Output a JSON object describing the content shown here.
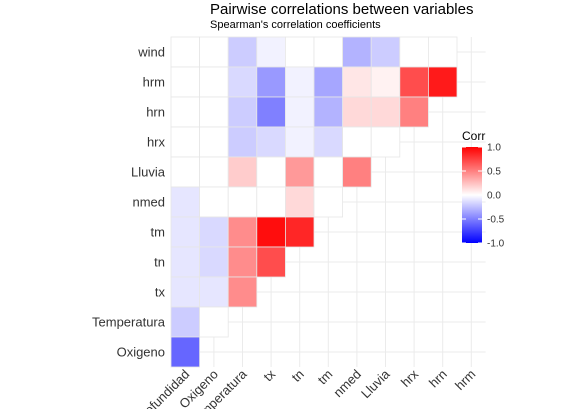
{
  "chart_data": {
    "type": "heatmap",
    "title": "Pairwise correlations between variables",
    "subtitle": "Spearman's correlation coefficients",
    "x_labels": [
      "Profundidad",
      "Oxigeno",
      "Temperatura",
      "tx",
      "tn",
      "tm",
      "nmed",
      "Lluvia",
      "hrx",
      "hrn",
      "hrm"
    ],
    "y_labels": [
      "wind",
      "hrm",
      "hrn",
      "hrx",
      "Lluvia",
      "nmed",
      "tm",
      "tn",
      "tx",
      "Temperatura",
      "Oxigeno"
    ],
    "cells": [
      {
        "x": "Profundidad",
        "y": "wind",
        "value": 0.0
      },
      {
        "x": "Oxigeno",
        "y": "wind",
        "value": 0.0
      },
      {
        "x": "Temperatura",
        "y": "wind",
        "value": -0.2
      },
      {
        "x": "tx",
        "y": "wind",
        "value": -0.05
      },
      {
        "x": "tn",
        "y": "wind",
        "value": 0.0
      },
      {
        "x": "tm",
        "y": "wind",
        "value": 0.0
      },
      {
        "x": "nmed",
        "y": "wind",
        "value": -0.3
      },
      {
        "x": "Lluvia",
        "y": "wind",
        "value": -0.2
      },
      {
        "x": "hrx",
        "y": "wind",
        "value": 0.0
      },
      {
        "x": "hrn",
        "y": "wind",
        "value": 0.0
      },
      {
        "x": "Profundidad",
        "y": "hrm",
        "value": 0.0
      },
      {
        "x": "Oxigeno",
        "y": "hrm",
        "value": 0.0
      },
      {
        "x": "Temperatura",
        "y": "hrm",
        "value": -0.15
      },
      {
        "x": "tx",
        "y": "hrm",
        "value": -0.4
      },
      {
        "x": "tn",
        "y": "hrm",
        "value": -0.05
      },
      {
        "x": "tm",
        "y": "hrm",
        "value": -0.35
      },
      {
        "x": "nmed",
        "y": "hrm",
        "value": 0.1
      },
      {
        "x": "Lluvia",
        "y": "hrm",
        "value": 0.05
      },
      {
        "x": "hrx",
        "y": "hrm",
        "value": 0.7
      },
      {
        "x": "hrn",
        "y": "hrm",
        "value": 0.9
      },
      {
        "x": "Profundidad",
        "y": "hrn",
        "value": 0.0
      },
      {
        "x": "Oxigeno",
        "y": "hrn",
        "value": 0.0
      },
      {
        "x": "Temperatura",
        "y": "hrn",
        "value": -0.2
      },
      {
        "x": "tx",
        "y": "hrn",
        "value": -0.5
      },
      {
        "x": "tn",
        "y": "hrn",
        "value": -0.05
      },
      {
        "x": "tm",
        "y": "hrn",
        "value": -0.3
      },
      {
        "x": "nmed",
        "y": "hrn",
        "value": 0.15
      },
      {
        "x": "Lluvia",
        "y": "hrn",
        "value": 0.15
      },
      {
        "x": "hrx",
        "y": "hrn",
        "value": 0.5
      },
      {
        "x": "Profundidad",
        "y": "hrx",
        "value": 0.0
      },
      {
        "x": "Oxigeno",
        "y": "hrx",
        "value": 0.0
      },
      {
        "x": "Temperatura",
        "y": "hrx",
        "value": -0.2
      },
      {
        "x": "tx",
        "y": "hrx",
        "value": -0.15
      },
      {
        "x": "tn",
        "y": "hrx",
        "value": -0.05
      },
      {
        "x": "tm",
        "y": "hrx",
        "value": -0.15
      },
      {
        "x": "nmed",
        "y": "hrx",
        "value": 0.0
      },
      {
        "x": "Lluvia",
        "y": "hrx",
        "value": 0.0
      },
      {
        "x": "Profundidad",
        "y": "Lluvia",
        "value": 0.0
      },
      {
        "x": "Oxigeno",
        "y": "Lluvia",
        "value": 0.0
      },
      {
        "x": "Temperatura",
        "y": "Lluvia",
        "value": 0.2
      },
      {
        "x": "tx",
        "y": "Lluvia",
        "value": 0.0
      },
      {
        "x": "tn",
        "y": "Lluvia",
        "value": 0.4
      },
      {
        "x": "tm",
        "y": "Lluvia",
        "value": 0.0
      },
      {
        "x": "nmed",
        "y": "Lluvia",
        "value": 0.5
      },
      {
        "x": "Profundidad",
        "y": "nmed",
        "value": -0.1
      },
      {
        "x": "Oxigeno",
        "y": "nmed",
        "value": 0.0
      },
      {
        "x": "Temperatura",
        "y": "nmed",
        "value": 0.0
      },
      {
        "x": "tx",
        "y": "nmed",
        "value": 0.0
      },
      {
        "x": "tn",
        "y": "nmed",
        "value": 0.15
      },
      {
        "x": "tm",
        "y": "nmed",
        "value": 0.0
      },
      {
        "x": "Profundidad",
        "y": "tm",
        "value": -0.1
      },
      {
        "x": "Oxigeno",
        "y": "tm",
        "value": -0.15
      },
      {
        "x": "Temperatura",
        "y": "tm",
        "value": 0.45
      },
      {
        "x": "tx",
        "y": "tm",
        "value": 0.95
      },
      {
        "x": "tn",
        "y": "tm",
        "value": 0.85
      },
      {
        "x": "Profundidad",
        "y": "tn",
        "value": -0.1
      },
      {
        "x": "Oxigeno",
        "y": "tn",
        "value": -0.15
      },
      {
        "x": "Temperatura",
        "y": "tn",
        "value": 0.45
      },
      {
        "x": "tx",
        "y": "tn",
        "value": 0.7
      },
      {
        "x": "Profundidad",
        "y": "tx",
        "value": -0.1
      },
      {
        "x": "Oxigeno",
        "y": "tx",
        "value": -0.1
      },
      {
        "x": "Temperatura",
        "y": "tx",
        "value": 0.45
      },
      {
        "x": "Profundidad",
        "y": "Temperatura",
        "value": -0.2
      },
      {
        "x": "Oxigeno",
        "y": "Temperatura",
        "value": 0.0
      },
      {
        "x": "Profundidad",
        "y": "Oxigeno",
        "value": -0.6
      }
    ],
    "color_scale": {
      "title": "Corr",
      "low": "#0000ff",
      "mid": "#ffffff",
      "high": "#ff0000",
      "limits": [
        -1.0,
        1.0
      ],
      "breaks": [
        1.0,
        0.5,
        0.0,
        -0.5,
        -1.0
      ],
      "break_labels": [
        "1.0",
        "0.5",
        "0.0",
        "-0.5",
        "-1.0"
      ]
    },
    "grid": true,
    "legend_position": "right"
  }
}
